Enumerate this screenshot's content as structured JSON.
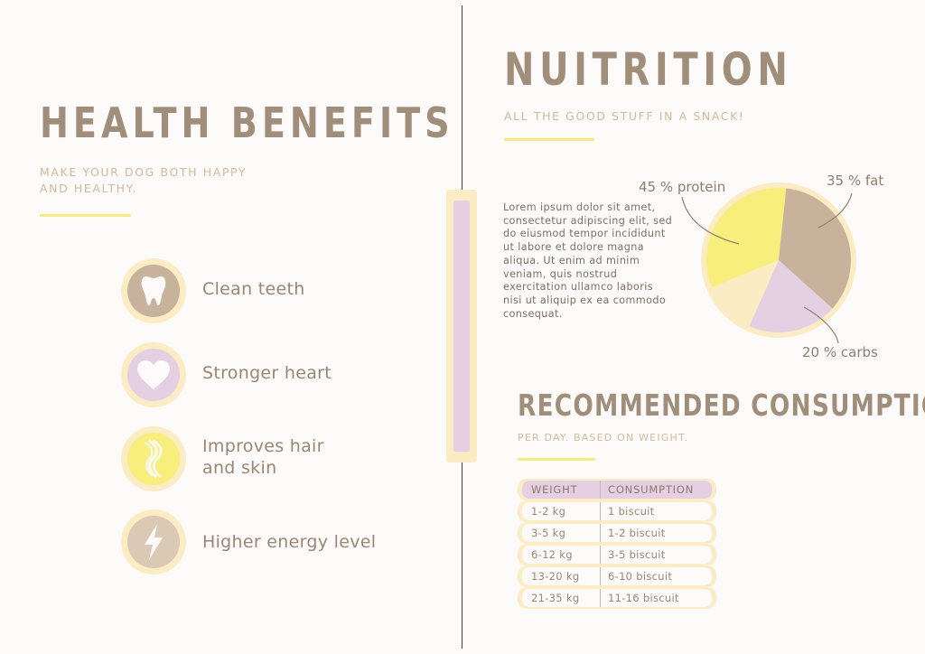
{
  "left": {
    "title": "HEALTH BENEFITS",
    "subtitle_line1": "MAKE YOUR DOG BOTH HAPPY",
    "subtitle_line2": "AND HEALTHY.",
    "benefits": [
      {
        "label": "Clean teeth",
        "icon": "tooth-icon",
        "color": "#c7b29b"
      },
      {
        "label": "Stronger heart",
        "icon": "heart-icon",
        "color": "#e4cfe3"
      },
      {
        "label_line1": "Improves hair",
        "label_line2": "and skin",
        "icon": "hair-icon",
        "color": "#f8ee7c"
      },
      {
        "label": "Higher energy level",
        "icon": "lightning-icon",
        "color": "#dac9b5"
      }
    ]
  },
  "right": {
    "title": "NUITRITION",
    "subtitle": "ALL THE GOOD STUFF IN A SNACK!",
    "lorem": "Lorem ipsum dolor sit amet, consectetur adipiscing elit, sed do eiusmod tempor incididunt ut labore et dolore magna aliqua. Ut enim ad minim veniam, quis nostrud exercitation ullamco laboris nisi ut aliquip ex ea commodo consequat.",
    "consumption_title": "RECOMMENDED CONSUMPTION",
    "consumption_subtitle": "PER DAY. BASED ON WEIGHT."
  },
  "chart_data": {
    "type": "pie",
    "slices": [
      {
        "label": "45 % protein",
        "value": 45,
        "color": "#f8ee7c"
      },
      {
        "label": "35 % fat",
        "value": 35,
        "color": "#c8b29b"
      },
      {
        "label": "20 % carbs",
        "value": 20,
        "color": "#e4cfe3"
      }
    ]
  },
  "table": {
    "headers": [
      "WEIGHT",
      "CONSUMPTION"
    ],
    "rows": [
      [
        "1-2 kg",
        "1 biscuit"
      ],
      [
        "3-5 kg",
        "1-2 biscuit"
      ],
      [
        "6-12 kg",
        "3-5 biscuit"
      ],
      [
        "13-20 kg",
        "6-10 biscuit"
      ],
      [
        "21-35 kg",
        "11-16 biscuit"
      ]
    ]
  },
  "colors": {
    "accent_yellow": "#f7ec7b",
    "cream": "#fbecc4",
    "lavender": "#e4cfe3",
    "taupe": "#a18e7a"
  }
}
